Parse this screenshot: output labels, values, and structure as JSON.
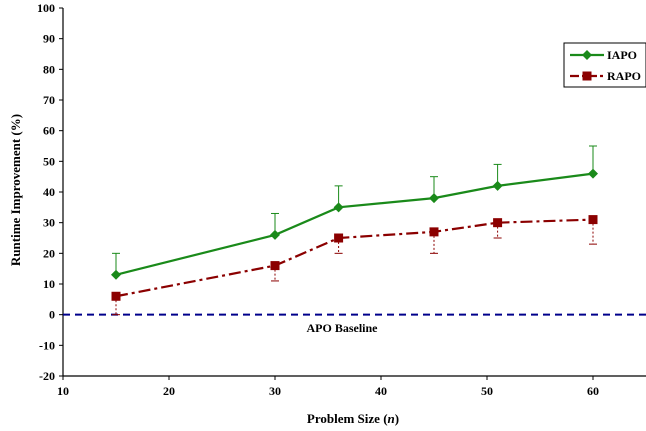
{
  "chart_data": {
    "type": "line",
    "xlabel": "Problem Size (",
    "xlabel_var": "n",
    "xlabel_end": ")",
    "ylabel": "Runtime Improvement (%)",
    "xlim": [
      10,
      65
    ],
    "ylim": [
      -20,
      100
    ],
    "xticks": [
      10,
      20,
      30,
      40,
      50,
      60
    ],
    "yticks": [
      -20,
      -10,
      0,
      10,
      20,
      30,
      40,
      50,
      60,
      70,
      80,
      90,
      100
    ],
    "grid": false,
    "legend_position": "top-right",
    "series": [
      {
        "name": "IAPO",
        "color": "#1a8a1a",
        "marker": "diamond",
        "line_style": "solid",
        "x": [
          15,
          30,
          36,
          45,
          51,
          60
        ],
        "values": [
          13,
          26,
          35,
          38,
          42,
          46
        ],
        "error_plus": [
          7,
          7,
          7,
          7,
          7,
          9
        ]
      },
      {
        "name": "RAPO",
        "color": "#8b0000",
        "marker": "square",
        "line_style": "dash-dot",
        "x": [
          15,
          30,
          36,
          45,
          51,
          60
        ],
        "values": [
          6,
          16,
          25,
          27,
          30,
          31
        ],
        "error_minus": [
          6,
          5,
          5,
          7,
          5,
          8
        ]
      }
    ],
    "baseline": {
      "label": "APO Baseline",
      "value": 0,
      "color": "#00008b"
    }
  }
}
